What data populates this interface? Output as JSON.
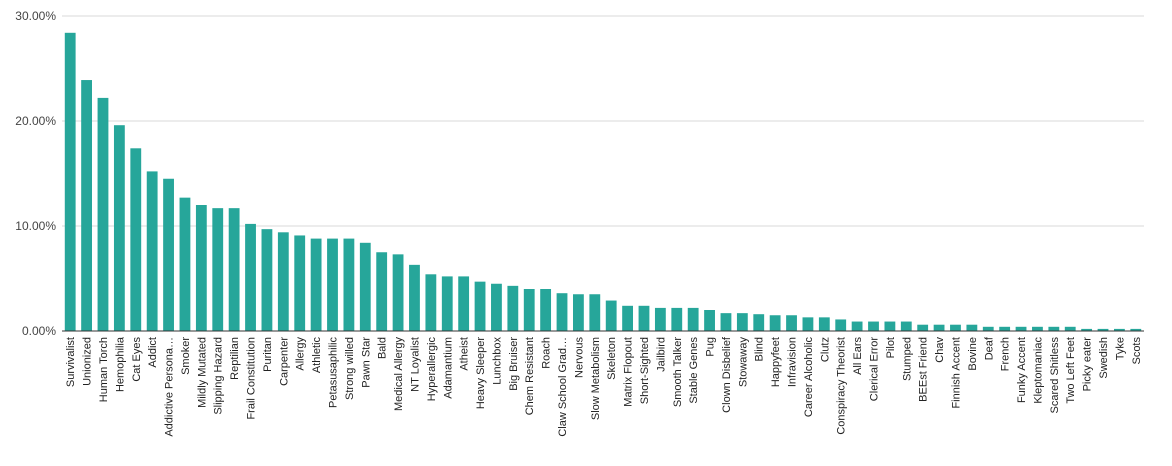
{
  "chart_data": {
    "type": "bar",
    "title": "",
    "xlabel": "",
    "ylabel": "",
    "ylim": [
      0,
      30
    ],
    "yticks": [
      "0.00%",
      "10.00%",
      "20.00%",
      "30.00%"
    ],
    "grid": true,
    "legend": "none",
    "bar_color": "#26a69a",
    "categories": [
      "Survivalist",
      "Unionized",
      "Human Torch",
      "Hemophilia",
      "Cat Eyes",
      "Addict",
      "Addictive Persona…",
      "Smoker",
      "Mildly Mutated",
      "Slipping Hazard",
      "Reptilian",
      "Frail Constitution",
      "Puritan",
      "Carpenter",
      "Allergy",
      "Athletic",
      "Petasusaphilic",
      "Strong willed",
      "Pawn Star",
      "Bald",
      "Medical Allergy",
      "NT Loyalist",
      "Hyperallergic",
      "Adamantium",
      "Atheist",
      "Heavy Sleeper",
      "Lunchbox",
      "Big Bruiser",
      "Chem Resistant",
      "Roach",
      "Claw School Grad…",
      "Nervous",
      "Slow Metabolism",
      "Skeleton",
      "Matrix Flopout",
      "Short-Sighted",
      "Jailbird",
      "Smooth Talker",
      "Stable Genes",
      "Pug",
      "Clown Disbelief",
      "Stowaway",
      "Blind",
      "Happyfeet",
      "Infravision",
      "Career Alcoholic",
      "Clutz",
      "Conspiracy Theorist",
      "All Ears",
      "Clerical Error",
      "Pilot",
      "Stumped",
      "BEEst Friend",
      "Chav",
      "Finnish Accent",
      "Bovine",
      "Deaf",
      "French",
      "Funky Accent",
      "Kleptomaniac",
      "Scared Shitless",
      "Two Left Feet",
      "Picky eater",
      "Swedish",
      "Tyke",
      "Scots"
    ],
    "values": [
      28.4,
      23.9,
      22.2,
      19.6,
      17.4,
      15.2,
      14.5,
      12.7,
      12.0,
      11.7,
      11.7,
      10.2,
      9.7,
      9.4,
      9.1,
      8.8,
      8.8,
      8.8,
      8.4,
      7.5,
      7.3,
      6.3,
      5.4,
      5.2,
      5.2,
      4.7,
      4.5,
      4.3,
      4.0,
      4.0,
      3.6,
      3.5,
      3.5,
      2.9,
      2.4,
      2.4,
      2.2,
      2.2,
      2.2,
      2.0,
      1.7,
      1.7,
      1.6,
      1.5,
      1.5,
      1.3,
      1.3,
      1.1,
      0.9,
      0.9,
      0.9,
      0.9,
      0.6,
      0.6,
      0.6,
      0.6,
      0.4,
      0.4,
      0.4,
      0.4,
      0.4,
      0.4,
      0.2,
      0.2,
      0.2,
      0.2
    ]
  }
}
